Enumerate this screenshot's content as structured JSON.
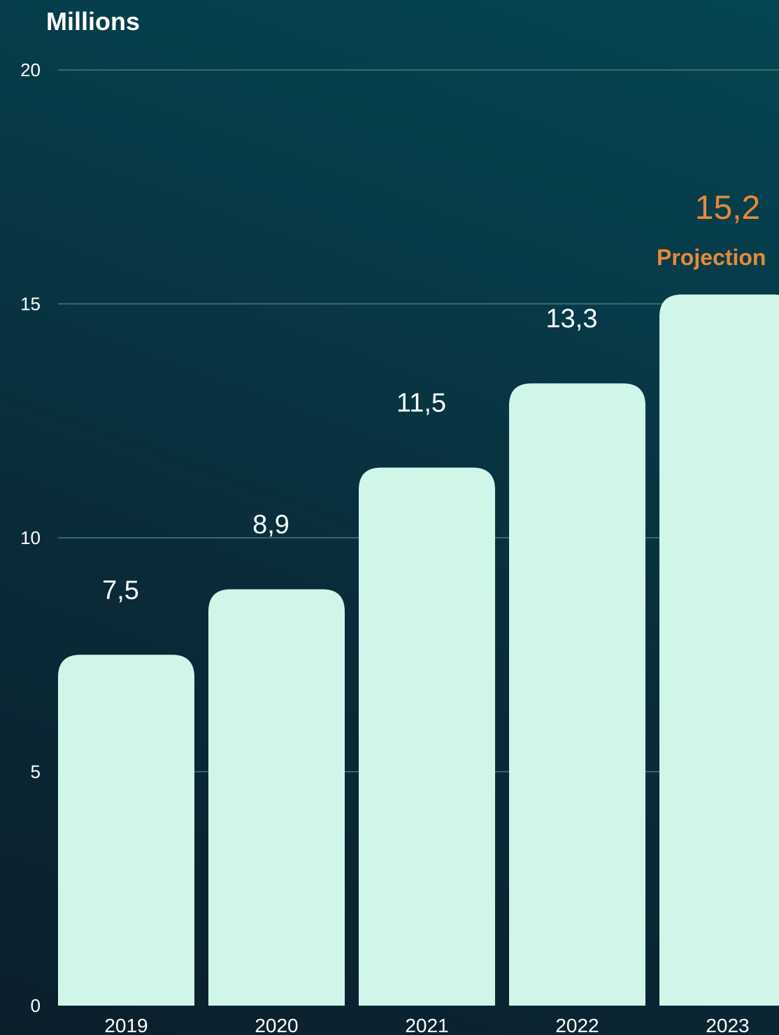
{
  "chart_data": {
    "type": "bar",
    "ylabel": "Millions",
    "categories": [
      "2019",
      "2020",
      "2021",
      "2022",
      "2023"
    ],
    "values": [
      7.5,
      8.9,
      11.5,
      13.3,
      15.2
    ],
    "value_labels": [
      "7,5",
      "8,9",
      "11,5",
      "13,3",
      "15,2"
    ],
    "ylim": [
      0,
      20
    ],
    "yticks": [
      0,
      5,
      10,
      15,
      20
    ],
    "grid": true,
    "highlight": {
      "category": "2023",
      "label": "Projection",
      "color": "#e8893a"
    },
    "colors": {
      "bar": "#d0f6ea",
      "text": "#ffffff",
      "grid": "#4a7886"
    }
  }
}
